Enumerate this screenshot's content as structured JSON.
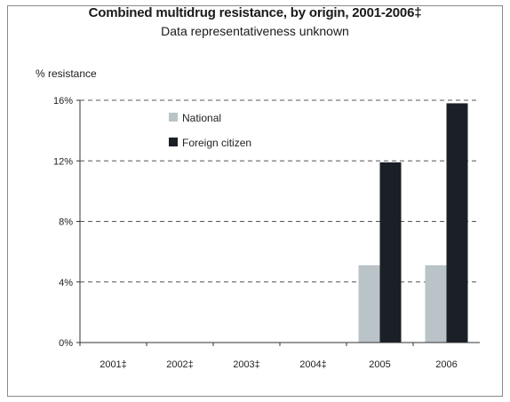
{
  "chart_data": {
    "type": "bar",
    "title": "Combined multidrug resistance, by origin, 2001-2006‡",
    "subtitle": "Data representativeness unknown",
    "ylabel": "% resistance",
    "xlabel": "",
    "categories": [
      "2001‡",
      "2002‡",
      "2003‡",
      "2004‡",
      "2005",
      "2006"
    ],
    "series": [
      {
        "name": "National",
        "color": "#b9c3c8",
        "values": [
          null,
          null,
          null,
          null,
          5.1,
          5.1
        ]
      },
      {
        "name": "Foreign citizen",
        "color": "#1b1f26",
        "values": [
          null,
          null,
          null,
          null,
          11.9,
          15.8
        ]
      }
    ],
    "yticks": [
      0,
      4,
      8,
      12,
      16
    ],
    "ytick_labels": [
      "0%",
      "4%",
      "8%",
      "12%",
      "16%"
    ],
    "ylim": [
      0,
      16
    ],
    "grid": "dashed horizontal",
    "legend": "top-left"
  }
}
